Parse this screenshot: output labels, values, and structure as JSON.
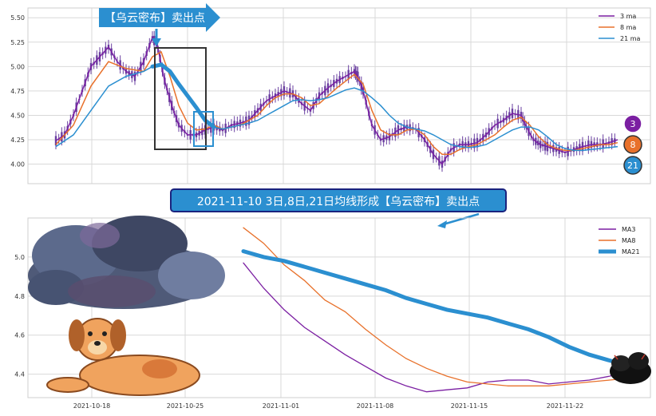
{
  "chart_data": [
    {
      "type": "line",
      "panel": "top",
      "title": "",
      "xlabel": "",
      "ylabel": "",
      "ylim": [
        3.8,
        5.6
      ],
      "yticks": [
        "4.00",
        "4.25",
        "4.50",
        "4.75",
        "5.00",
        "5.25",
        "5.50"
      ],
      "grid": true,
      "legend_position": "top-right",
      "legend": [
        "3 ma",
        "8 ma",
        "21 ma"
      ],
      "series": [
        {
          "name": "3 ma",
          "color": "#7b1fa2",
          "points": [
            [
              0,
              4.24
            ],
            [
              5,
              4.3
            ],
            [
              10,
              4.5
            ],
            [
              15,
              4.75
            ],
            [
              20,
              5.0
            ],
            [
              25,
              5.1
            ],
            [
              30,
              5.2
            ],
            [
              35,
              5.05
            ],
            [
              40,
              4.95
            ],
            [
              45,
              4.9
            ],
            [
              50,
              5.05
            ],
            [
              55,
              5.3
            ],
            [
              58,
              5.2
            ],
            [
              62,
              4.85
            ],
            [
              66,
              4.6
            ],
            [
              70,
              4.4
            ],
            [
              75,
              4.3
            ],
            [
              80,
              4.3
            ],
            [
              85,
              4.35
            ],
            [
              90,
              4.38
            ],
            [
              95,
              4.35
            ],
            [
              100,
              4.4
            ],
            [
              105,
              4.42
            ],
            [
              110,
              4.45
            ],
            [
              115,
              4.55
            ],
            [
              120,
              4.65
            ],
            [
              125,
              4.7
            ],
            [
              130,
              4.75
            ],
            [
              135,
              4.72
            ],
            [
              140,
              4.62
            ],
            [
              145,
              4.55
            ],
            [
              150,
              4.7
            ],
            [
              155,
              4.78
            ],
            [
              160,
              4.85
            ],
            [
              165,
              4.9
            ],
            [
              170,
              4.95
            ],
            [
              172,
              4.9
            ],
            [
              175,
              4.75
            ],
            [
              180,
              4.4
            ],
            [
              185,
              4.25
            ],
            [
              190,
              4.28
            ],
            [
              195,
              4.35
            ],
            [
              200,
              4.38
            ],
            [
              205,
              4.36
            ],
            [
              210,
              4.25
            ],
            [
              215,
              4.1
            ],
            [
              220,
              4.0
            ],
            [
              225,
              4.15
            ],
            [
              230,
              4.2
            ],
            [
              235,
              4.2
            ],
            [
              240,
              4.22
            ],
            [
              245,
              4.3
            ],
            [
              250,
              4.4
            ],
            [
              255,
              4.45
            ],
            [
              260,
              4.52
            ],
            [
              265,
              4.5
            ],
            [
              268,
              4.38
            ],
            [
              272,
              4.25
            ],
            [
              276,
              4.2
            ],
            [
              280,
              4.18
            ],
            [
              285,
              4.15
            ],
            [
              290,
              4.12
            ],
            [
              295,
              4.15
            ],
            [
              300,
              4.18
            ],
            [
              305,
              4.2
            ],
            [
              310,
              4.2
            ],
            [
              315,
              4.22
            ],
            [
              320,
              4.25
            ]
          ]
        },
        {
          "name": "8 ma",
          "color": "#e8712b",
          "points": [
            [
              0,
              4.2
            ],
            [
              10,
              4.4
            ],
            [
              20,
              4.8
            ],
            [
              30,
              5.05
            ],
            [
              40,
              4.98
            ],
            [
              50,
              4.95
            ],
            [
              55,
              5.1
            ],
            [
              60,
              5.15
            ],
            [
              65,
              4.9
            ],
            [
              70,
              4.6
            ],
            [
              75,
              4.42
            ],
            [
              80,
              4.35
            ],
            [
              85,
              4.36
            ],
            [
              90,
              4.4
            ],
            [
              95,
              4.36
            ],
            [
              100,
              4.38
            ],
            [
              105,
              4.4
            ],
            [
              110,
              4.45
            ],
            [
              115,
              4.5
            ],
            [
              120,
              4.6
            ],
            [
              125,
              4.68
            ],
            [
              130,
              4.72
            ],
            [
              135,
              4.72
            ],
            [
              140,
              4.68
            ],
            [
              145,
              4.6
            ],
            [
              150,
              4.62
            ],
            [
              155,
              4.7
            ],
            [
              160,
              4.78
            ],
            [
              165,
              4.85
            ],
            [
              170,
              4.92
            ],
            [
              175,
              4.82
            ],
            [
              180,
              4.55
            ],
            [
              185,
              4.35
            ],
            [
              190,
              4.3
            ],
            [
              195,
              4.3
            ],
            [
              200,
              4.35
            ],
            [
              205,
              4.36
            ],
            [
              210,
              4.3
            ],
            [
              215,
              4.18
            ],
            [
              220,
              4.1
            ],
            [
              225,
              4.1
            ],
            [
              230,
              4.15
            ],
            [
              235,
              4.18
            ],
            [
              240,
              4.2
            ],
            [
              245,
              4.25
            ],
            [
              250,
              4.3
            ],
            [
              255,
              4.38
            ],
            [
              260,
              4.45
            ],
            [
              265,
              4.48
            ],
            [
              270,
              4.4
            ],
            [
              275,
              4.28
            ],
            [
              280,
              4.2
            ],
            [
              285,
              4.16
            ],
            [
              290,
              4.14
            ],
            [
              295,
              4.14
            ],
            [
              300,
              4.16
            ],
            [
              305,
              4.18
            ],
            [
              310,
              4.2
            ],
            [
              315,
              4.2
            ],
            [
              320,
              4.22
            ]
          ]
        },
        {
          "name": "21 ma",
          "color": "#2b8fd0",
          "points": [
            [
              0,
              4.18
            ],
            [
              10,
              4.3
            ],
            [
              20,
              4.55
            ],
            [
              30,
              4.8
            ],
            [
              40,
              4.9
            ],
            [
              50,
              4.95
            ],
            [
              55,
              5.0
            ],
            [
              60,
              5.02
            ],
            [
              65,
              4.95
            ],
            [
              70,
              4.82
            ],
            [
              75,
              4.7
            ],
            [
              80,
              4.58
            ],
            [
              85,
              4.45
            ],
            [
              90,
              4.38
            ],
            [
              95,
              4.36
            ],
            [
              100,
              4.38
            ],
            [
              105,
              4.4
            ],
            [
              110,
              4.42
            ],
            [
              115,
              4.45
            ],
            [
              120,
              4.5
            ],
            [
              125,
              4.55
            ],
            [
              130,
              4.6
            ],
            [
              135,
              4.65
            ],
            [
              140,
              4.66
            ],
            [
              145,
              4.65
            ],
            [
              150,
              4.66
            ],
            [
              155,
              4.68
            ],
            [
              160,
              4.72
            ],
            [
              165,
              4.76
            ],
            [
              170,
              4.78
            ],
            [
              175,
              4.75
            ],
            [
              180,
              4.68
            ],
            [
              185,
              4.6
            ],
            [
              190,
              4.5
            ],
            [
              195,
              4.42
            ],
            [
              200,
              4.38
            ],
            [
              205,
              4.36
            ],
            [
              210,
              4.34
            ],
            [
              215,
              4.3
            ],
            [
              220,
              4.25
            ],
            [
              225,
              4.2
            ],
            [
              230,
              4.18
            ],
            [
              235,
              4.17
            ],
            [
              240,
              4.18
            ],
            [
              245,
              4.2
            ],
            [
              250,
              4.25
            ],
            [
              255,
              4.3
            ],
            [
              260,
              4.35
            ],
            [
              265,
              4.38
            ],
            [
              270,
              4.38
            ],
            [
              275,
              4.35
            ],
            [
              280,
              4.28
            ],
            [
              285,
              4.2
            ],
            [
              290,
              4.16
            ],
            [
              295,
              4.14
            ],
            [
              300,
              4.14
            ],
            [
              305,
              4.15
            ],
            [
              310,
              4.16
            ],
            [
              315,
              4.17
            ],
            [
              320,
              4.18
            ]
          ]
        }
      ]
    },
    {
      "type": "line",
      "panel": "bottom",
      "title": "",
      "xlabel": "",
      "ylabel": "",
      "ylim": [
        4.28,
        5.2
      ],
      "yticks": [
        "4.4",
        "4.6",
        "4.8",
        "5.0"
      ],
      "xticks": [
        "2021-10-18",
        "2021-10-25",
        "2021-11-01",
        "2021-11-08",
        "2021-11-15",
        "2021-11-22"
      ],
      "grid": true,
      "legend_position": "top-right",
      "legend": [
        "MA3",
        "MA8",
        "MA21"
      ],
      "series": [
        {
          "name": "MA3",
          "color": "#7b1fa2",
          "points": [
            [
              0,
              4.97
            ],
            [
              1,
              4.84
            ],
            [
              2,
              4.73
            ],
            [
              3,
              4.64
            ],
            [
              4,
              4.57
            ],
            [
              5,
              4.5
            ],
            [
              6,
              4.44
            ],
            [
              7,
              4.38
            ],
            [
              8,
              4.34
            ],
            [
              9,
              4.31
            ],
            [
              10,
              4.32
            ],
            [
              11,
              4.33
            ],
            [
              12,
              4.36
            ],
            [
              13,
              4.37
            ],
            [
              14,
              4.37
            ],
            [
              15,
              4.35
            ],
            [
              16,
              4.36
            ],
            [
              17,
              4.37
            ],
            [
              18,
              4.39
            ],
            [
              19,
              4.42
            ]
          ]
        },
        {
          "name": "MA8",
          "color": "#e8712b",
          "points": [
            [
              0,
              5.15
            ],
            [
              1,
              5.07
            ],
            [
              2,
              4.96
            ],
            [
              3,
              4.88
            ],
            [
              4,
              4.78
            ],
            [
              5,
              4.72
            ],
            [
              6,
              4.63
            ],
            [
              7,
              4.55
            ],
            [
              8,
              4.48
            ],
            [
              9,
              4.43
            ],
            [
              10,
              4.39
            ],
            [
              11,
              4.36
            ],
            [
              12,
              4.35
            ],
            [
              13,
              4.34
            ],
            [
              14,
              4.34
            ],
            [
              15,
              4.34
            ],
            [
              16,
              4.35
            ],
            [
              17,
              4.36
            ],
            [
              18,
              4.37
            ],
            [
              19,
              4.38
            ]
          ]
        },
        {
          "name": "MA21",
          "color": "#2b8fd0",
          "points": [
            [
              0,
              5.03
            ],
            [
              1,
              5.0
            ],
            [
              2,
              4.98
            ],
            [
              3,
              4.95
            ],
            [
              4,
              4.92
            ],
            [
              5,
              4.89
            ],
            [
              6,
              4.86
            ],
            [
              7,
              4.83
            ],
            [
              8,
              4.79
            ],
            [
              9,
              4.76
            ],
            [
              10,
              4.73
            ],
            [
              11,
              4.71
            ],
            [
              12,
              4.69
            ],
            [
              13,
              4.66
            ],
            [
              14,
              4.63
            ],
            [
              15,
              4.59
            ],
            [
              16,
              4.54
            ],
            [
              17,
              4.5
            ],
            [
              18,
              4.47
            ],
            [
              19,
              4.44
            ]
          ]
        }
      ]
    }
  ],
  "annotations": {
    "arrow_label": "【乌云密布】卖出点",
    "banner": "2021-11-10 3日,8日,21日均线形成【乌云密布】卖出点",
    "badges": [
      "3",
      "8",
      "21"
    ]
  },
  "colors": {
    "ma3": "#7b1fa2",
    "ma8": "#e8712b",
    "ma21": "#2b8fd0",
    "banner_fill": "#2b8fd0",
    "candle": "#6a3fa0"
  }
}
